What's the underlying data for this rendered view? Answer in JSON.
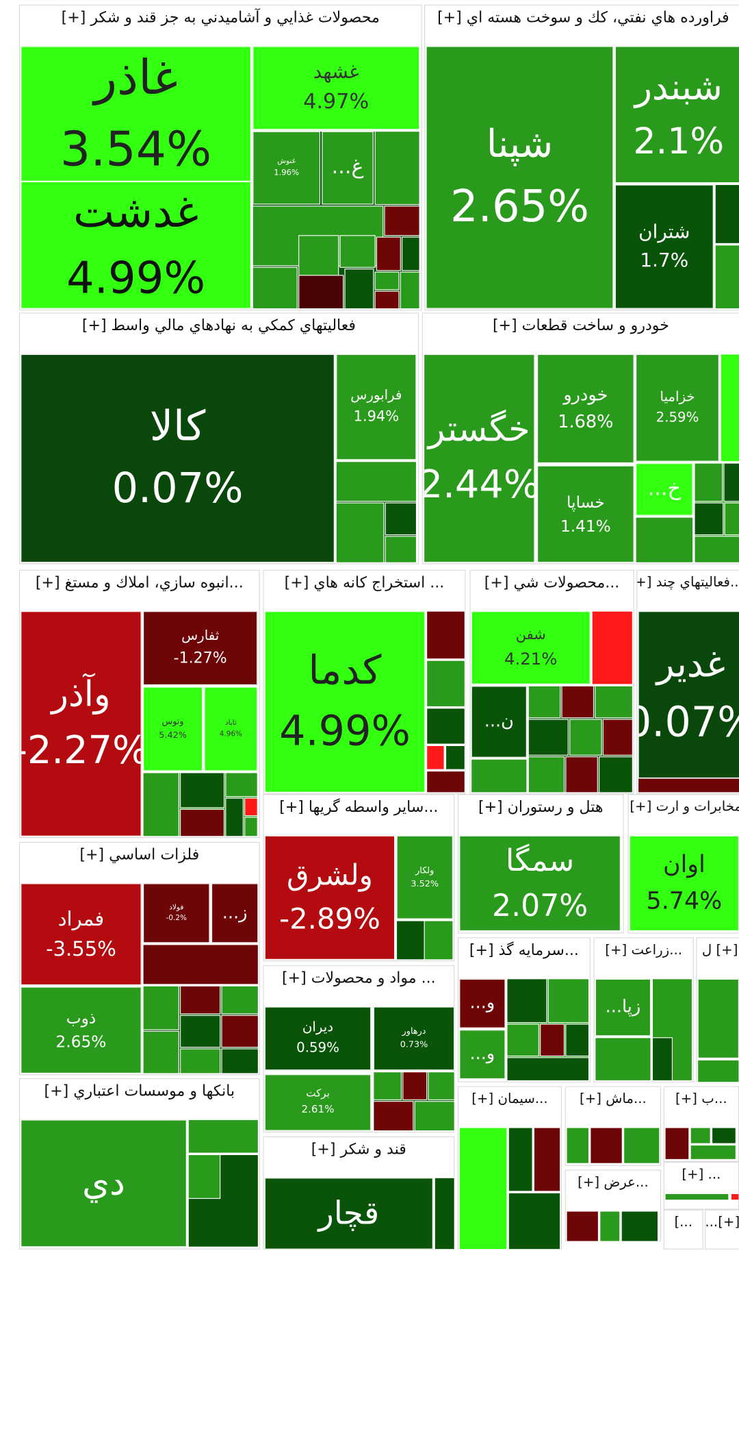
{
  "colors": {
    "bright_green": "#33ff11",
    "green": "#2a9a1c",
    "dark_green": "#0a540a",
    "darker_green": "#0a470a",
    "dark_red": "#6e0507",
    "red": "#b30b0f",
    "bright_red": "#ff1a1a",
    "border": "#ffffff",
    "title_text": "#111111"
  },
  "chart_data": {
    "type": "treemap",
    "metric": "daily price change (%)",
    "sectors": [
      {
        "title": "محصولات غذايي و آشاميدني به جز قند و شكر [+]",
        "tiles": [
          {
            "name": "غاذر",
            "value": 3.54,
            "color": "#33ff11"
          },
          {
            "name": "غدشت",
            "value": 4.99,
            "color": "#33ff11"
          },
          {
            "name": "غشهد",
            "value": 4.97,
            "color": "#33ff11"
          },
          {
            "name": "غنوش",
            "value": 1.96,
            "color": "#2a9a1c"
          },
          {
            "name": "غ...",
            "value": null,
            "color": "#2a9a1c"
          }
        ]
      },
      {
        "title": "فراورده هاي نفتي، كك و سوخت هسته اي [+]",
        "tiles": [
          {
            "name": "شپنا",
            "value": 2.65,
            "color": "#2a9a1c"
          },
          {
            "name": "شبندر",
            "value": 2.1,
            "color": "#2a9a1c"
          },
          {
            "name": "شتران",
            "value": 1.7,
            "color": "#0a540a"
          }
        ]
      },
      {
        "title": "فعاليتهاي كمكي به نهادهاي مالي واسط [+]",
        "tiles": [
          {
            "name": "كالا",
            "value": 0.07,
            "color": "#0a470a"
          },
          {
            "name": "فرابورس",
            "value": 1.94,
            "color": "#2a9a1c"
          }
        ]
      },
      {
        "title": "خودرو و ساخت قطعات [+]",
        "tiles": [
          {
            "name": "خگستر",
            "value": 2.44,
            "color": "#2a9a1c"
          },
          {
            "name": "خودرو",
            "value": 1.68,
            "color": "#2a9a1c"
          },
          {
            "name": "خساپا",
            "value": 1.41,
            "color": "#2a9a1c"
          },
          {
            "name": "خزاميا",
            "value": 2.59,
            "color": "#2a9a1c"
          },
          {
            "name": "خ...",
            "value": null,
            "color": "#33ff11"
          }
        ]
      },
      {
        "title": "...انبوه سازي، املاك و مستغ [+]",
        "tiles": [
          {
            "name": "وآذر",
            "value": -2.27,
            "color": "#b30b0f"
          },
          {
            "name": "ثفارس",
            "value": -1.27,
            "color": "#6e0507"
          },
          {
            "name": "وتوس",
            "value": 5.42,
            "color": "#33ff11"
          },
          {
            "name": "ثاباد",
            "value": 4.96,
            "color": "#33ff11"
          }
        ]
      },
      {
        "title": "... استخراج كانه هاي [+]",
        "tiles": [
          {
            "name": "كدما",
            "value": 4.99,
            "color": "#33ff11"
          }
        ]
      },
      {
        "title": "...محصولات شي [+]",
        "tiles": [
          {
            "name": "شفن",
            "value": 4.21,
            "color": "#33ff11"
          },
          {
            "name": "ن...",
            "value": null,
            "color": "#0a540a"
          }
        ]
      },
      {
        "title": "...فعاليتهاي چند [+]",
        "tiles": [
          {
            "name": "غدير",
            "value": 0.07,
            "color": "#0a470a"
          }
        ]
      },
      {
        "title": "...ساير واسطه گريها [+]",
        "tiles": [
          {
            "name": "ولشرق",
            "value": -2.89,
            "color": "#b30b0f"
          },
          {
            "name": "ولكار",
            "value": 3.52,
            "color": "#2a9a1c"
          }
        ]
      },
      {
        "title": "هتل و رستوران [+]",
        "tiles": [
          {
            "name": "سمگا",
            "value": 2.07,
            "color": "#2a9a1c"
          }
        ]
      },
      {
        "title": "مخابرات و ارت [+]",
        "tiles": [
          {
            "name": "اوان",
            "value": 5.74,
            "color": "#33ff11"
          }
        ]
      },
      {
        "title": "فلزات اساسي [+]",
        "tiles": [
          {
            "name": "فمراد",
            "value": -3.55,
            "color": "#b30b0f"
          },
          {
            "name": "فولاد",
            "value": -0.2,
            "color": "#6e0507"
          },
          {
            "name": "ز...",
            "value": null,
            "color": "#6e0507"
          },
          {
            "name": "ذوب",
            "value": 2.65,
            "color": "#2a9a1c"
          }
        ]
      },
      {
        "title": "... مواد و محصولات [+]",
        "tiles": [
          {
            "name": "ديران",
            "value": 0.59,
            "color": "#0a540a"
          },
          {
            "name": "درهاور",
            "value": 0.73,
            "color": "#0a540a"
          },
          {
            "name": "بركت",
            "value": 2.61,
            "color": "#2a9a1c"
          }
        ]
      },
      {
        "title": "...سرمايه گذ [+]",
        "tiles": [
          {
            "name": "و...",
            "value": null,
            "color": "#6e0507"
          },
          {
            "name": "و...",
            "value": null,
            "color": "#2a9a1c"
          }
        ]
      },
      {
        "title": "...زراعت [+]",
        "tiles": [
          {
            "name": "زپا...",
            "value": null,
            "color": "#2a9a1c"
          }
        ]
      },
      {
        "title": "[+] ل",
        "tiles": [
          {
            "name": "",
            "value": null,
            "color": "#2a9a1c"
          }
        ]
      },
      {
        "title": "بانكها و موسسات اعتباري [+]",
        "tiles": [
          {
            "name": "دي",
            "value": null,
            "color": "#2a9a1c"
          }
        ]
      },
      {
        "title": "قند و شكر [+]",
        "tiles": [
          {
            "name": "قچار",
            "value": null,
            "color": "#0a540a"
          }
        ]
      },
      {
        "title": "...سيمان [+]",
        "tiles": []
      },
      {
        "title": "...ماش [+]",
        "tiles": []
      },
      {
        "title": "...ب [+]",
        "tiles": []
      },
      {
        "title": "... [+]",
        "tiles": []
      },
      {
        "title": "...عرض [+]",
        "tiles": []
      },
      {
        "title": "...]",
        "tiles": []
      },
      {
        "title": "[+]...",
        "tiles": []
      }
    ]
  }
}
